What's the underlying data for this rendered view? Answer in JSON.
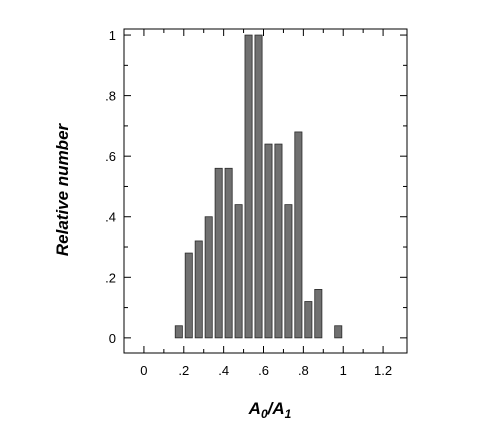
{
  "chart_data": {
    "type": "bar",
    "title": "",
    "xlabel": "A0/A1",
    "xlabel_main": "A",
    "xlabel_sub1": "0",
    "xlabel_slash": "/",
    "xlabel_main2": "A",
    "xlabel_sub2": "1",
    "ylabel": "Relative number",
    "xlim": [
      -0.1,
      1.32
    ],
    "ylim": [
      -0.05,
      1.02
    ],
    "bin_width": 0.05,
    "x_ticks": [
      {
        "value": 0,
        "label": "0"
      },
      {
        "value": 0.2,
        "label": ".2"
      },
      {
        "value": 0.4,
        "label": ".4"
      },
      {
        "value": 0.6,
        "label": ".6"
      },
      {
        "value": 0.8,
        "label": ".8"
      },
      {
        "value": 1.0,
        "label": "1"
      },
      {
        "value": 1.2,
        "label": "1.2"
      }
    ],
    "y_ticks": [
      {
        "value": 0,
        "label": "0"
      },
      {
        "value": 0.2,
        "label": ".2"
      },
      {
        "value": 0.4,
        "label": ".4"
      },
      {
        "value": 0.6,
        "label": ".6"
      },
      {
        "value": 0.8,
        "label": ".8"
      },
      {
        "value": 1.0,
        "label": "1"
      }
    ],
    "x_minor_step": 0.1,
    "y_minor_step": 0.1,
    "bins": [
      {
        "x": 0.15,
        "value": 0.04
      },
      {
        "x": 0.2,
        "value": 0.28
      },
      {
        "x": 0.25,
        "value": 0.32
      },
      {
        "x": 0.3,
        "value": 0.4
      },
      {
        "x": 0.35,
        "value": 0.56
      },
      {
        "x": 0.4,
        "value": 0.56
      },
      {
        "x": 0.45,
        "value": 0.44
      },
      {
        "x": 0.5,
        "value": 1.0
      },
      {
        "x": 0.55,
        "value": 1.0
      },
      {
        "x": 0.6,
        "value": 0.64
      },
      {
        "x": 0.65,
        "value": 0.64
      },
      {
        "x": 0.7,
        "value": 0.44
      },
      {
        "x": 0.75,
        "value": 0.68
      },
      {
        "x": 0.8,
        "value": 0.12
      },
      {
        "x": 0.85,
        "value": 0.16
      },
      {
        "x": 0.95,
        "value": 0.04
      }
    ],
    "grid": false,
    "legend": "none",
    "bar_color": "#707070"
  }
}
